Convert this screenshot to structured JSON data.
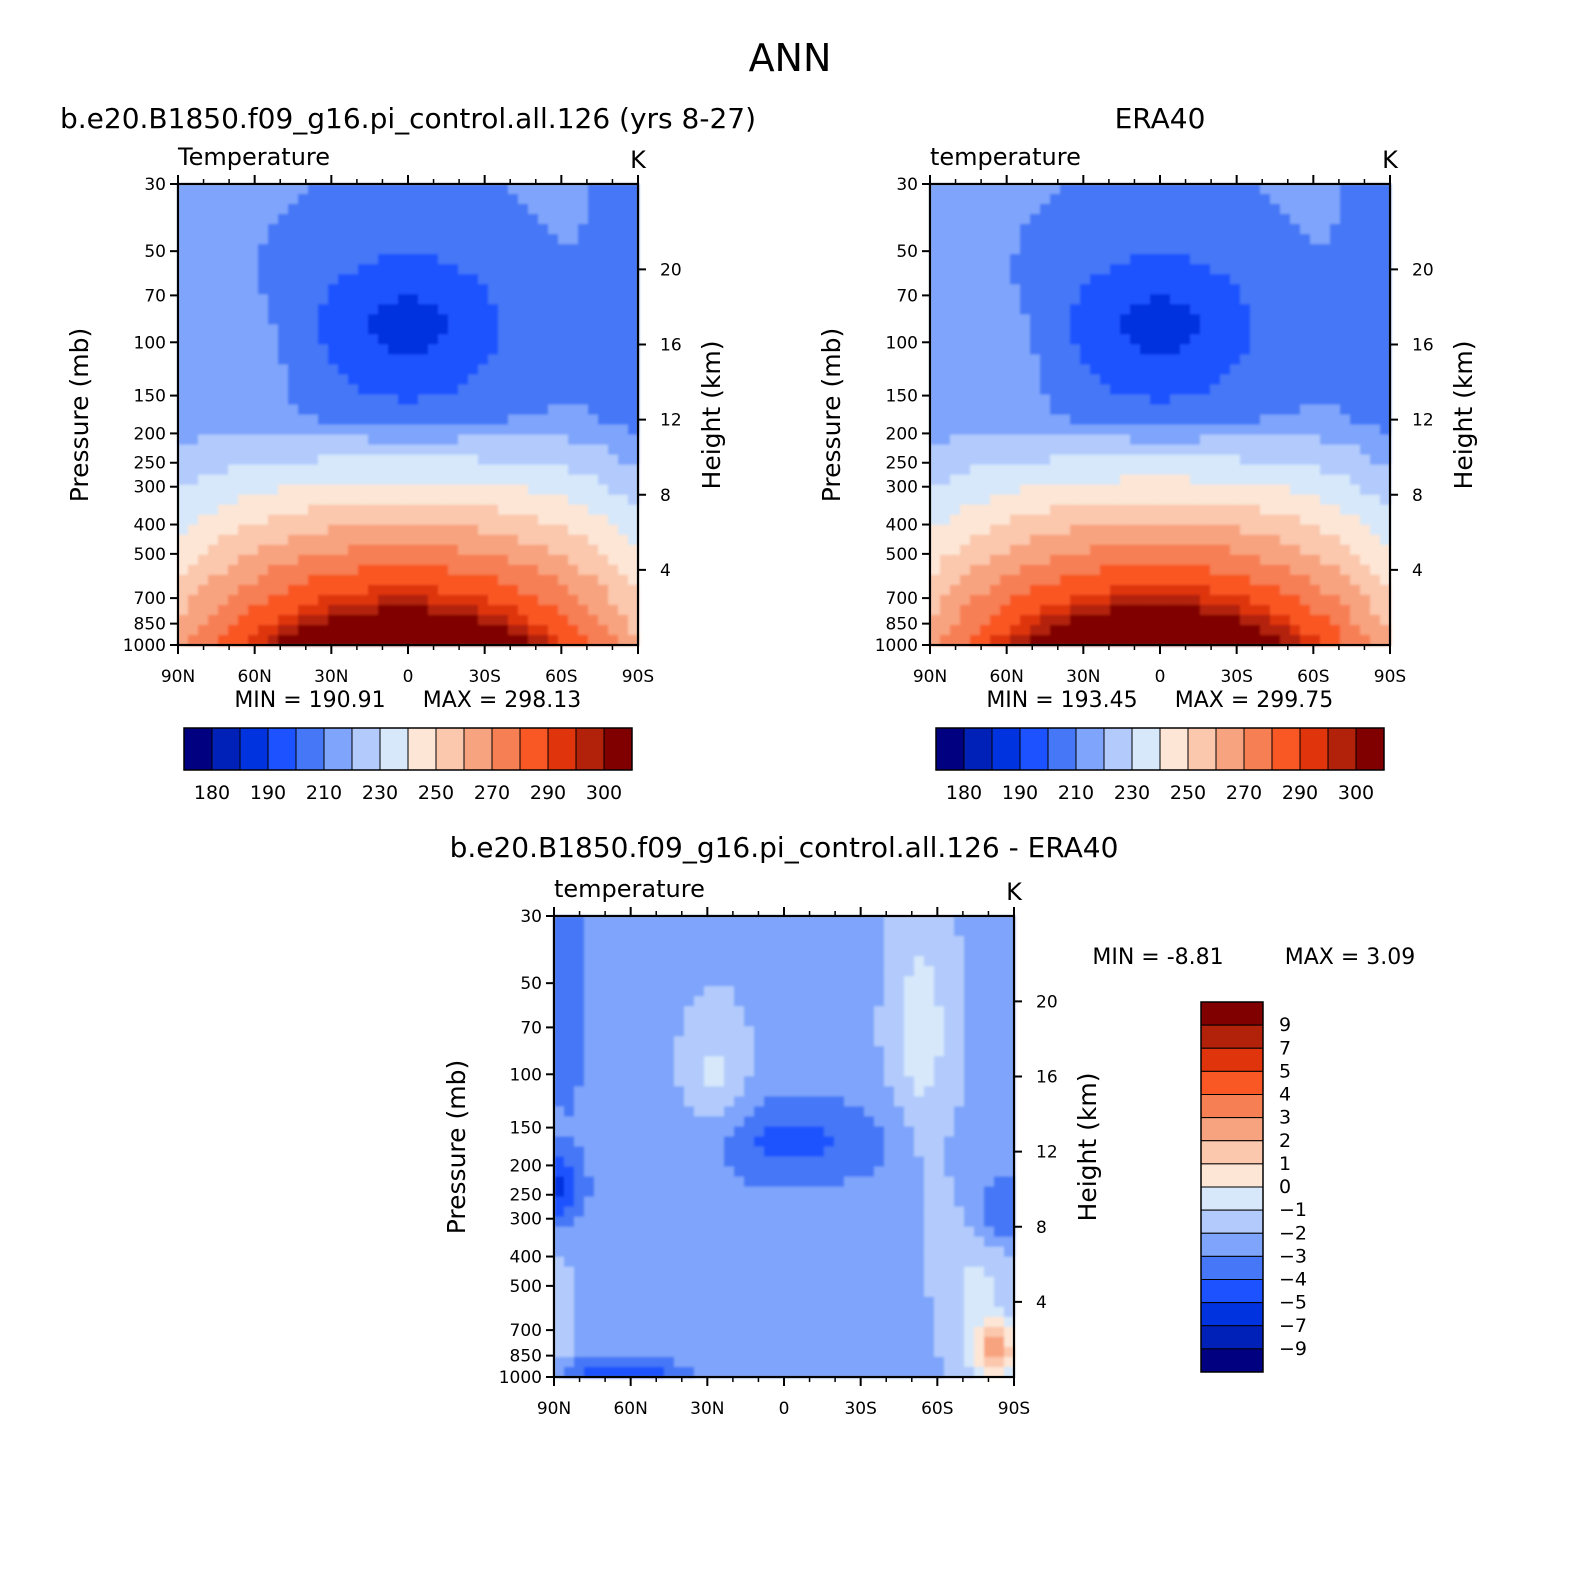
{
  "figure_title": "ANN",
  "colors": {
    "abs_levels": [
      "#000080",
      "#0021b7",
      "#0033e0",
      "#1c52ff",
      "#4577f7",
      "#7ea4fb",
      "#b2cbfc",
      "#d6e8fa",
      "#fde6d6",
      "#fbc7ad",
      "#f8a37f",
      "#f77f54",
      "#f95723",
      "#df340c",
      "#b2220a",
      "#800000"
    ],
    "diff_levels": [
      "#000080",
      "#0021b7",
      "#0033e0",
      "#1c52ff",
      "#4577f7",
      "#7ea4fb",
      "#b2cbfc",
      "#d6e8fa",
      "#fde6d6",
      "#fbc7ad",
      "#f8a37f",
      "#f77f54",
      "#f95723",
      "#df340c",
      "#b2220a",
      "#800000"
    ]
  },
  "chart_data": [
    {
      "type": "heatmap",
      "panel": "model",
      "title": "b.e20.B1850.f09_g16.pi_control.all.126 (yrs 8-27)",
      "subtitle": "Temperature",
      "units": "K",
      "xlabel": "",
      "ylabel": "Pressure (mb)",
      "y2label": "Height (km)",
      "x_ticks": [
        "90N",
        "60N",
        "30N",
        "0",
        "30S",
        "60S",
        "90S"
      ],
      "y_ticks": [
        30,
        50,
        70,
        100,
        150,
        200,
        250,
        300,
        400,
        500,
        700,
        850,
        1000
      ],
      "y2_ticks": [
        20,
        16,
        12,
        8,
        4
      ],
      "ylim": [
        1000,
        30
      ],
      "y_scale": "log",
      "min_text": "MIN = 190.91",
      "max_text": "MAX = 298.13",
      "min": 190.91,
      "max": 298.13,
      "colorbar_labels": [
        "180",
        "190",
        "210",
        "230",
        "250",
        "270",
        "290",
        "300"
      ],
      "colorbar_bounds": [
        175,
        180,
        185,
        190,
        200,
        210,
        220,
        230,
        240,
        250,
        260,
        270,
        280,
        290,
        295,
        300,
        305
      ]
    },
    {
      "type": "heatmap",
      "panel": "obs",
      "title": "ERA40",
      "subtitle": "temperature",
      "units": "K",
      "xlabel": "",
      "ylabel": "Pressure (mb)",
      "y2label": "Height (km)",
      "x_ticks": [
        "90N",
        "60N",
        "30N",
        "0",
        "30S",
        "60S",
        "90S"
      ],
      "y_ticks": [
        30,
        50,
        70,
        100,
        150,
        200,
        250,
        300,
        400,
        500,
        700,
        850,
        1000
      ],
      "y2_ticks": [
        20,
        16,
        12,
        8,
        4
      ],
      "ylim": [
        1000,
        30
      ],
      "y_scale": "log",
      "min_text": "MIN = 193.45",
      "max_text": "MAX = 299.75",
      "min": 193.45,
      "max": 299.75,
      "colorbar_labels": [
        "180",
        "190",
        "210",
        "230",
        "250",
        "270",
        "290",
        "300"
      ],
      "colorbar_bounds": [
        175,
        180,
        185,
        190,
        200,
        210,
        220,
        230,
        240,
        250,
        260,
        270,
        280,
        290,
        295,
        300,
        305
      ]
    },
    {
      "type": "heatmap",
      "panel": "difference",
      "title": "b.e20.B1850.f09_g16.pi_control.all.126 - ERA40",
      "subtitle": "temperature",
      "units": "K",
      "xlabel": "",
      "ylabel": "Pressure (mb)",
      "y2label": "Height (km)",
      "x_ticks": [
        "90N",
        "60N",
        "30N",
        "0",
        "30S",
        "60S",
        "90S"
      ],
      "y_ticks": [
        30,
        50,
        70,
        100,
        150,
        200,
        250,
        300,
        400,
        500,
        700,
        850,
        1000
      ],
      "y2_ticks": [
        20,
        16,
        12,
        8,
        4
      ],
      "ylim": [
        1000,
        30
      ],
      "y_scale": "log",
      "min_text": "MIN = -8.81",
      "max_text": "MAX = 3.09",
      "min": -8.81,
      "max": 3.09,
      "colorbar_labels": [
        "9",
        "7",
        "5",
        "4",
        "3",
        "2",
        "1",
        "0",
        "-1",
        "-2",
        "-3",
        "-4",
        "-5",
        "-7",
        "-9"
      ]
    }
  ]
}
